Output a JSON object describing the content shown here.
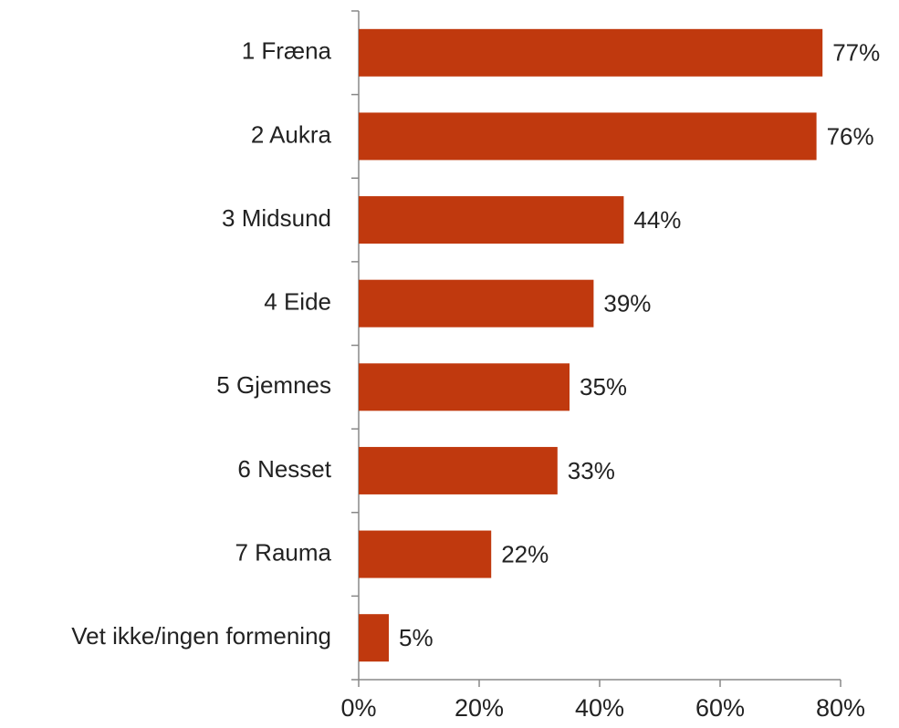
{
  "chart_data": {
    "type": "bar",
    "categories": [
      "1 Fræna",
      "2 Aukra",
      "3 Midsund",
      "4 Eide",
      "5 Gjemnes",
      "6 Nesset",
      "7 Rauma",
      "Vet ikke/ingen formening"
    ],
    "values": [
      77,
      76,
      44,
      39,
      35,
      33,
      22,
      5
    ],
    "value_labels": [
      "77%",
      "76%",
      "44%",
      "39%",
      "35%",
      "33%",
      "22%",
      "5%"
    ],
    "color": "#c0390e",
    "xlim": [
      0,
      80
    ],
    "xticks": [
      {
        "value": 0,
        "label": "0%"
      },
      {
        "value": 20,
        "label": "20%"
      },
      {
        "value": 40,
        "label": "40%"
      },
      {
        "value": 60,
        "label": "60%"
      },
      {
        "value": 80,
        "label": "80%"
      }
    ]
  }
}
